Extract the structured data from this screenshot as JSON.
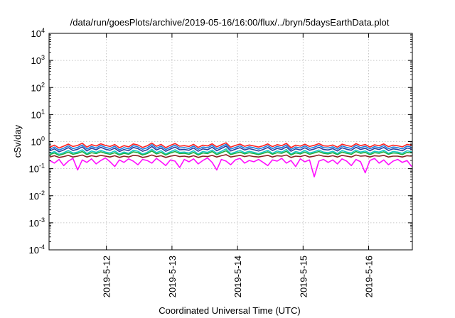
{
  "chart_data": {
    "type": "line",
    "title": "/data/run/goesPlots/archive/2019-05-16/16:00/flux/../bryn/5daysEarthData.plot",
    "xlabel": "Coordinated Universal Time (UTC)",
    "ylabel": "cSv/day",
    "yscale": "log",
    "ylim": [
      0.0001,
      10000
    ],
    "y_ticks": [
      {
        "base": "10",
        "exp": "-4",
        "value": 0.0001
      },
      {
        "base": "10",
        "exp": "-3",
        "value": 0.001
      },
      {
        "base": "10",
        "exp": "-2",
        "value": 0.01
      },
      {
        "base": "10",
        "exp": "-1",
        "value": 0.1
      },
      {
        "base": "10",
        "exp": "0",
        "value": 1
      },
      {
        "base": "10",
        "exp": "1",
        "value": 10
      },
      {
        "base": "10",
        "exp": "2",
        "value": 100
      },
      {
        "base": "10",
        "exp": "3",
        "value": 1000
      },
      {
        "base": "10",
        "exp": "4",
        "value": 10000
      }
    ],
    "xlim": [
      "2019-05-11 03:00",
      "2019-05-16 16:00"
    ],
    "x_ticks": [
      "2019-5-12",
      "2019-5-13",
      "2019-5-14",
      "2019-5-15",
      "2019-5-16"
    ],
    "grid": true,
    "series": [
      {
        "color": "#ff2020",
        "values": [
          [
            0.62,
            0.74,
            0.58,
            0.68,
            0.81,
            0.66,
            0.72,
            0.87,
            0.63,
            0.77,
            0.69,
            0.83,
            0.72,
            0.66,
            0.78
          ],
          [
            0.59,
            0.71,
            0.64,
            0.82,
            0.75,
            0.61,
            0.7,
            0.88,
            0.67,
            0.79,
            0.6,
            0.73,
            0.85,
            0.68,
            0.71
          ],
          [
            0.66,
            0.79,
            0.61,
            0.74,
            0.69,
            0.83,
            0.64,
            0.76,
            0.9,
            0.62,
            0.72,
            0.81,
            0.67,
            0.75,
            0.69
          ],
          [
            0.63,
            0.7,
            0.82,
            0.65,
            0.77,
            0.71,
            0.86,
            0.6,
            0.74,
            0.68,
            0.8,
            0.66,
            0.73,
            0.84,
            0.7
          ],
          [
            0.68,
            0.75,
            0.62,
            0.8,
            0.72,
            0.66,
            0.84,
            0.71,
            0.78,
            0.63,
            0.76,
            0.7,
            0.82,
            0.65,
            0.74
          ],
          [
            0.7,
            0.64,
            0.79,
            0.73
          ]
        ]
      },
      {
        "color": "#1a7fe0",
        "values": [
          [
            0.52,
            0.63,
            0.49,
            0.57,
            0.7,
            0.55,
            0.61,
            0.75,
            0.53,
            0.66,
            0.58,
            0.72,
            0.61,
            0.56,
            0.67
          ],
          [
            0.5,
            0.6,
            0.54,
            0.71,
            0.64,
            0.52,
            0.59,
            0.77,
            0.57,
            0.68,
            0.51,
            0.62,
            0.74,
            0.58,
            0.6
          ],
          [
            0.56,
            0.68,
            0.52,
            0.63,
            0.59,
            0.72,
            0.54,
            0.65,
            0.79,
            0.53,
            0.61,
            0.7,
            0.57,
            0.64,
            0.59
          ],
          [
            0.53,
            0.6,
            0.71,
            0.55,
            0.66,
            0.6,
            0.75,
            0.51,
            0.63,
            0.58,
            0.69,
            0.56,
            0.62,
            0.73,
            0.6
          ],
          [
            0.58,
            0.64,
            0.53,
            0.69,
            0.61,
            0.56,
            0.73,
            0.6,
            0.67,
            0.54,
            0.65,
            0.6,
            0.71,
            0.55,
            0.63
          ],
          [
            0.6,
            0.54,
            0.68,
            0.62
          ]
        ]
      },
      {
        "color": "#2c3f9c",
        "values": [
          [
            0.45,
            0.54,
            0.42,
            0.49,
            0.6,
            0.47,
            0.52,
            0.64,
            0.45,
            0.57,
            0.5,
            0.62,
            0.52,
            0.48,
            0.57
          ],
          [
            0.43,
            0.51,
            0.46,
            0.61,
            0.55,
            0.44,
            0.5,
            0.66,
            0.49,
            0.58,
            0.44,
            0.53,
            0.63,
            0.5,
            0.51
          ],
          [
            0.48,
            0.58,
            0.44,
            0.54,
            0.5,
            0.62,
            0.46,
            0.56,
            0.68,
            0.45,
            0.52,
            0.6,
            0.49,
            0.55,
            0.5
          ],
          [
            0.45,
            0.51,
            0.61,
            0.47,
            0.56,
            0.51,
            0.64,
            0.44,
            0.54,
            0.49,
            0.59,
            0.48,
            0.53,
            0.62,
            0.51
          ],
          [
            0.49,
            0.55,
            0.45,
            0.59,
            0.52,
            0.48,
            0.62,
            0.51,
            0.57,
            0.46,
            0.56,
            0.51,
            0.61,
            0.47,
            0.54
          ],
          [
            0.51,
            0.46,
            0.58,
            0.53
          ]
        ]
      },
      {
        "color": "#18c8c8",
        "values": [
          [
            0.36,
            0.43,
            0.34,
            0.39,
            0.47,
            0.38,
            0.41,
            0.5,
            0.36,
            0.45,
            0.4,
            0.48,
            0.41,
            0.38,
            0.45
          ],
          [
            0.35,
            0.41,
            0.37,
            0.48,
            0.44,
            0.35,
            0.4,
            0.52,
            0.39,
            0.46,
            0.35,
            0.42,
            0.5,
            0.4,
            0.41
          ],
          [
            0.38,
            0.46,
            0.35,
            0.43,
            0.4,
            0.49,
            0.37,
            0.44,
            0.54,
            0.36,
            0.41,
            0.47,
            0.39,
            0.44,
            0.4
          ],
          [
            0.36,
            0.41,
            0.48,
            0.37,
            0.45,
            0.41,
            0.51,
            0.35,
            0.43,
            0.39,
            0.47,
            0.38,
            0.42,
            0.49,
            0.41
          ],
          [
            0.39,
            0.44,
            0.36,
            0.47,
            0.41,
            0.38,
            0.49,
            0.41,
            0.45,
            0.37,
            0.44,
            0.41,
            0.48,
            0.37,
            0.43
          ],
          [
            0.41,
            0.37,
            0.46,
            0.42
          ]
        ]
      },
      {
        "color": "#20b040",
        "values": [
          [
            0.33,
            0.38,
            0.31,
            0.35,
            0.41,
            0.34,
            0.37,
            0.43,
            0.33,
            0.39,
            0.36,
            0.42,
            0.37,
            0.34,
            0.39
          ],
          [
            0.32,
            0.37,
            0.34,
            0.42,
            0.39,
            0.32,
            0.36,
            0.45,
            0.35,
            0.4,
            0.32,
            0.38,
            0.43,
            0.36,
            0.37
          ],
          [
            0.34,
            0.4,
            0.32,
            0.38,
            0.36,
            0.43,
            0.33,
            0.39,
            0.46,
            0.33,
            0.37,
            0.41,
            0.35,
            0.39,
            0.36
          ],
          [
            0.33,
            0.37,
            0.42,
            0.34,
            0.39,
            0.37,
            0.44,
            0.32,
            0.38,
            0.35,
            0.41,
            0.34,
            0.38,
            0.43,
            0.37
          ],
          [
            0.35,
            0.39,
            0.33,
            0.41,
            0.37,
            0.34,
            0.43,
            0.37,
            0.4,
            0.33,
            0.39,
            0.37,
            0.42,
            0.34,
            0.38
          ],
          [
            0.37,
            0.33,
            0.4,
            0.38
          ]
        ]
      },
      {
        "color": "#8a2020",
        "values": [
          [
            0.27,
            0.3,
            0.26,
            0.28,
            0.31,
            0.27,
            0.29,
            0.32,
            0.27,
            0.3,
            0.28,
            0.31,
            0.29,
            0.27,
            0.3
          ],
          [
            0.26,
            0.29,
            0.27,
            0.31,
            0.3,
            0.26,
            0.28,
            0.32,
            0.28,
            0.3,
            0.26,
            0.29,
            0.31,
            0.28,
            0.29
          ],
          [
            0.27,
            0.3,
            0.26,
            0.29,
            0.28,
            0.31,
            0.27,
            0.3,
            0.33,
            0.27,
            0.29,
            0.31,
            0.28,
            0.3,
            0.28
          ],
          [
            0.27,
            0.29,
            0.31,
            0.27,
            0.3,
            0.29,
            0.32,
            0.26,
            0.29,
            0.28,
            0.31,
            0.27,
            0.29,
            0.32,
            0.29
          ],
          [
            0.28,
            0.3,
            0.27,
            0.31,
            0.29,
            0.27,
            0.32,
            0.29,
            0.3,
            0.27,
            0.3,
            0.29,
            0.31,
            0.27,
            0.29
          ],
          [
            0.29,
            0.27,
            0.3,
            0.29
          ]
        ]
      },
      {
        "color": "#ff10ff",
        "values": [
          [
            0.2,
            0.16,
            0.22,
            0.13,
            0.19,
            0.24,
            0.09,
            0.21,
            0.17,
            0.23,
            0.15,
            0.2,
            0.25,
            0.18,
            0.12
          ],
          [
            0.21,
            0.17,
            0.23,
            0.19,
            0.14,
            0.22,
            0.2,
            0.16,
            0.24,
            0.18,
            0.13,
            0.21,
            0.19,
            0.11,
            0.22
          ],
          [
            0.18,
            0.23,
            0.15,
            0.2,
            0.25,
            0.17,
            0.09,
            0.22,
            0.19,
            0.14,
            0.21,
            0.24,
            0.16,
            0.2,
            0.18
          ],
          [
            0.22,
            0.17,
            0.13,
            0.21,
            0.19,
            0.24,
            0.16,
            0.2,
            0.12,
            0.23,
            0.18,
            0.21,
            0.05,
            0.19,
            0.22
          ],
          [
            0.17,
            0.21,
            0.15,
            0.23,
            0.19,
            0.13,
            0.22,
            0.18,
            0.07,
            0.2,
            0.24,
            0.16,
            0.21,
            0.14,
            0.19
          ],
          [
            0.22,
            0.17,
            0.2,
            0.12
          ]
        ]
      }
    ]
  }
}
